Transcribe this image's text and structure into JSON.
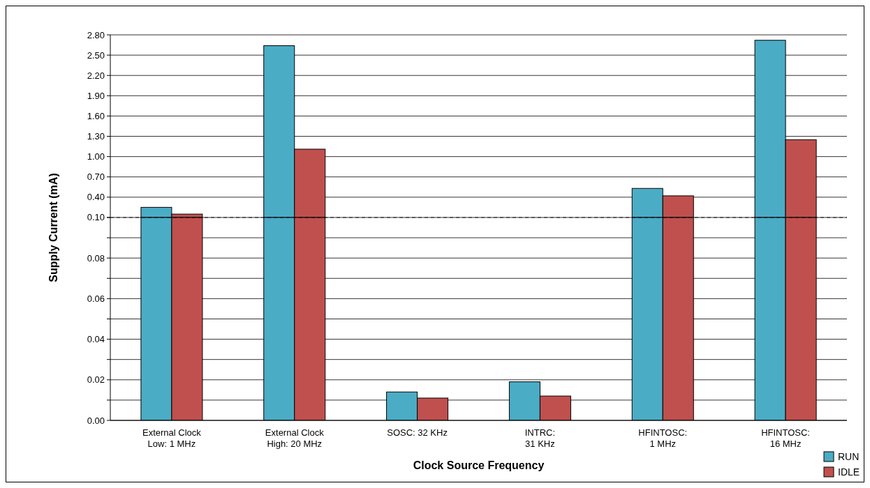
{
  "chart_data": [
    {
      "type": "bar",
      "ylabel": "Supply Current (mA)",
      "categories": [
        null,
        null,
        null,
        null,
        null,
        null
      ],
      "series": [
        {
          "color": "#4bacc6",
          "values": [
            0.25,
            2.64,
            null,
            null,
            0.53,
            2.72
          ]
        },
        {
          "color": "#c0504d",
          "values": [
            0.15,
            1.11,
            null,
            null,
            0.42,
            1.25
          ]
        }
      ],
      "ylim": [
        0.1,
        2.8
      ],
      "yticks": [
        {
          "value": 0.1,
          "label": null
        },
        {
          "value": 0.4,
          "label": "0.40"
        },
        {
          "value": 0.7,
          "label": "0.70"
        },
        {
          "value": 1,
          "label": "1.00"
        },
        {
          "value": 1.3,
          "label": "1.30"
        },
        {
          "value": 1.6,
          "label": "1.60"
        },
        {
          "value": 1.9,
          "label": "1.90"
        },
        {
          "value": 2.2,
          "label": "2.20"
        },
        {
          "value": 2.5,
          "label": "2.50"
        },
        {
          "value": 2.8,
          "label": "2.80"
        }
      ],
      "grid": "y",
      "tick_labels": "y"
    },
    {
      "type": "bar",
      "xlabel": "Clock Source Frequency",
      "categories": [
        "External Clock\nLow: 1 MHz",
        "External Clock\nHigh: 20 MHz",
        "SOSC: 32 KHz",
        "INTRC:\n31 KHz",
        "HFINTOSC:\n1 MHz",
        "HFINTOSC:\n16 MHz"
      ],
      "series": [
        {
          "name": "RUN",
          "color": "#4bacc6",
          "values": [
            0.1,
            0.1,
            0.014,
            0.019,
            0.1,
            0.1
          ]
        },
        {
          "name": "IDLE",
          "color": "#c0504d",
          "values": [
            0.1,
            0.1,
            0.011,
            0.012,
            0.1,
            0.1
          ]
        }
      ],
      "ylim": [
        0,
        0.1
      ],
      "yticks": [
        {
          "value": 0,
          "label": "0.00"
        },
        {
          "value": 0.01,
          "label": null
        },
        {
          "value": 0.02,
          "label": "0.02"
        },
        {
          "value": 0.03,
          "label": null
        },
        {
          "value": 0.04,
          "label": "0.04"
        },
        {
          "value": 0.05,
          "label": null
        },
        {
          "value": 0.06,
          "label": "0.06"
        },
        {
          "value": 0.07,
          "label": null
        },
        {
          "value": 0.08,
          "label": "0.08"
        },
        {
          "value": 0.09,
          "label": null
        },
        {
          "value": 0.1,
          "label": "0.10"
        }
      ],
      "ref_lines": [
        {
          "axis": "y",
          "value": 0.1,
          "line_style": "dashed"
        }
      ],
      "grid": "y",
      "legend": "bottom right"
    }
  ]
}
